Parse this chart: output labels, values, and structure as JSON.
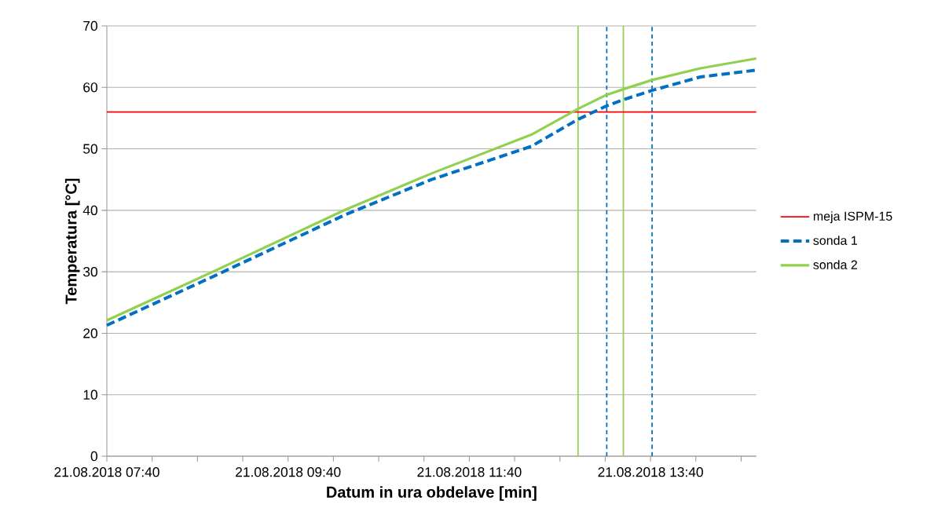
{
  "chart_data": {
    "type": "line",
    "xlabel": "Datum in ura obdelave [min]",
    "ylabel": "Temperatura [°C]",
    "xlim": [
      "2018-08-21T07:40",
      "2018-08-21T14:50"
    ],
    "ylim": [
      0,
      70
    ],
    "yticks": [
      0,
      10,
      20,
      30,
      40,
      50,
      60,
      70
    ],
    "xticks": [
      {
        "value": "2018-08-21T07:40",
        "label": "21.08.2018 07:40"
      },
      {
        "value": "2018-08-21T08:10",
        "label": null
      },
      {
        "value": "2018-08-21T08:40",
        "label": null
      },
      {
        "value": "2018-08-21T09:10",
        "label": null
      },
      {
        "value": "2018-08-21T09:40",
        "label": "21.08.2018 09:40"
      },
      {
        "value": "2018-08-21T10:10",
        "label": null
      },
      {
        "value": "2018-08-21T10:40",
        "label": null
      },
      {
        "value": "2018-08-21T11:10",
        "label": null
      },
      {
        "value": "2018-08-21T11:40",
        "label": "21.08.2018 11:40"
      },
      {
        "value": "2018-08-21T12:10",
        "label": null
      },
      {
        "value": "2018-08-21T12:40",
        "label": null
      },
      {
        "value": "2018-08-21T13:10",
        "label": null
      },
      {
        "value": "2018-08-21T13:40",
        "label": "21.08.2018 13:40"
      },
      {
        "value": "2018-08-21T14:10",
        "label": null
      },
      {
        "value": "2018-08-21T14:40",
        "label": null
      }
    ],
    "grid": "y",
    "legend": "right",
    "series": [
      {
        "name": "meja ISPM-15",
        "color": "#ff0000",
        "x": [
          "2018-08-21T07:40",
          "2018-08-21T14:50"
        ],
        "values": [
          56,
          56
        ]
      },
      {
        "name": "sonda 1",
        "color": "#0070c0",
        "line_style": "dashed",
        "x": [
          "2018-08-21T07:40",
          "2018-08-21T08:51",
          "2018-08-21T10:18",
          "2018-08-21T11:15",
          "2018-08-21T12:21",
          "2018-08-21T12:52",
          "2018-08-21T13:11",
          "2018-08-21T13:22",
          "2018-08-21T13:41",
          "2018-08-21T14:13",
          "2018-08-21T14:50"
        ],
        "values": [
          21.3,
          29.3,
          39.3,
          45.0,
          50.4,
          54.8,
          57.0,
          58.0,
          59.5,
          61.7,
          62.8
        ]
      },
      {
        "name": "sonda 2",
        "color": "#92d050",
        "line_style": "solid",
        "x": [
          "2018-08-21T07:40",
          "2018-08-21T08:51",
          "2018-08-21T10:18",
          "2018-08-21T11:15",
          "2018-08-21T12:21",
          "2018-08-21T12:52",
          "2018-08-21T13:11",
          "2018-08-21T13:22",
          "2018-08-21T13:41",
          "2018-08-21T14:13",
          "2018-08-21T14:50"
        ],
        "values": [
          22.1,
          30.1,
          40.1,
          46.0,
          52.3,
          56.5,
          58.8,
          59.7,
          61.2,
          63.1,
          64.7
        ]
      }
    ],
    "ref_lines": [
      {
        "axis": "x",
        "value": "2018-08-21T12:52",
        "color": "#92d050",
        "line_style": "solid"
      },
      {
        "axis": "x",
        "value": "2018-08-21T13:11",
        "color": "#0070c0",
        "line_style": "dashed"
      },
      {
        "axis": "x",
        "value": "2018-08-21T13:22",
        "color": "#92d050",
        "line_style": "solid"
      },
      {
        "axis": "x",
        "value": "2018-08-21T13:41",
        "color": "#0070c0",
        "line_style": "dashed"
      }
    ]
  }
}
